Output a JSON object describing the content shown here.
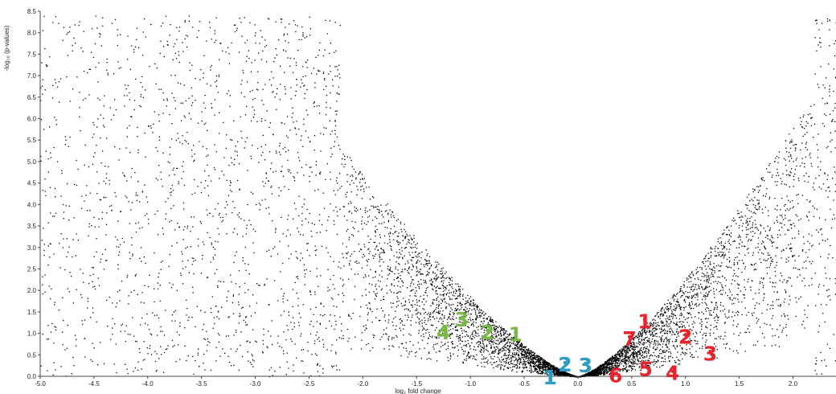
{
  "chart_data": {
    "type": "scatter",
    "title": "",
    "xlabel": "log₂ fold change",
    "ylabel": "-log₁₀ (p-values)",
    "xlim": [
      -5.0,
      2.4
    ],
    "ylim": [
      0.0,
      8.5
    ],
    "x_ticks": [
      "-5.0",
      "-4.5",
      "-4.0",
      "-3.5",
      "-3.0",
      "-2.5",
      "-2.0",
      "-1.5",
      "-1.0",
      "-0.5",
      "0.0",
      "0.5",
      "1.0",
      "1.5",
      "2.0"
    ],
    "y_ticks": [
      "0.0",
      "0.5",
      "1.0",
      "1.5",
      "2.0",
      "2.5",
      "3.0",
      "3.5",
      "4.0",
      "4.5",
      "5.0",
      "5.5",
      "6.0",
      "6.5",
      "7.0",
      "7.5",
      "8.0",
      "8.5"
    ],
    "grid": false,
    "legend": "none",
    "point_color": "#000000",
    "point_count": 9000,
    "point_distribution": "volcano: density highest near x=0, y=0; points spread outward in a V shape",
    "highlighted_points": [
      {
        "label": "1",
        "x": -0.26,
        "y": 0.0,
        "group": "blue"
      },
      {
        "label": "2",
        "x": -0.12,
        "y": 0.3,
        "group": "blue"
      },
      {
        "label": "3",
        "x": 0.07,
        "y": 0.28,
        "group": "blue"
      },
      {
        "label": "1",
        "x": -0.58,
        "y": 1.0,
        "group": "green"
      },
      {
        "label": "2",
        "x": -0.84,
        "y": 1.05,
        "group": "green"
      },
      {
        "label": "3",
        "x": -1.08,
        "y": 1.35,
        "group": "green"
      },
      {
        "label": "4",
        "x": -1.25,
        "y": 1.05,
        "group": "green"
      },
      {
        "label": "1",
        "x": 0.62,
        "y": 1.3,
        "group": "red"
      },
      {
        "label": "2",
        "x": 1.0,
        "y": 0.95,
        "group": "red"
      },
      {
        "label": "3",
        "x": 1.23,
        "y": 0.55,
        "group": "red"
      },
      {
        "label": "4",
        "x": 0.88,
        "y": 0.1,
        "group": "red"
      },
      {
        "label": "5",
        "x": 0.63,
        "y": 0.2,
        "group": "red"
      },
      {
        "label": "6",
        "x": 0.35,
        "y": 0.05,
        "group": "red"
      },
      {
        "label": "7",
        "x": 0.48,
        "y": 0.9,
        "group": "red"
      }
    ],
    "group_colors": {
      "blue": "#2e9bc2",
      "green": "#7ab648",
      "red": "#e8232b"
    }
  }
}
